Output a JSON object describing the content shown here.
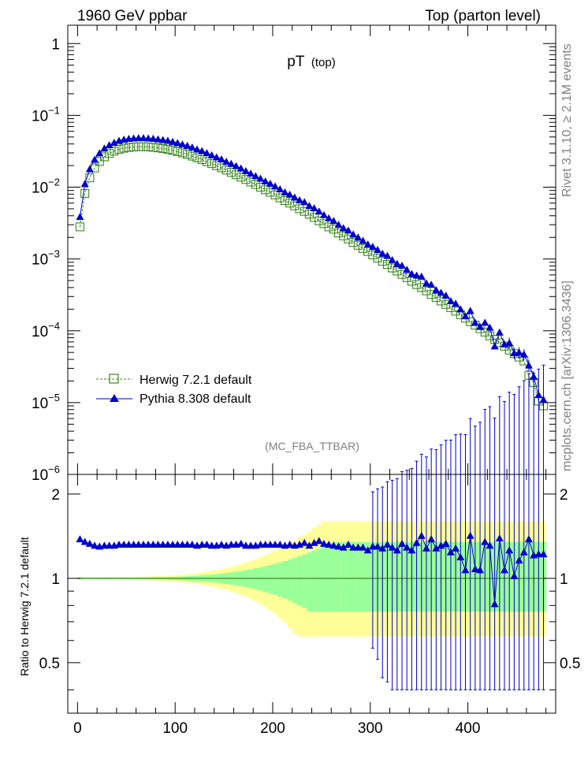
{
  "header": {
    "left": "1960 GeV ppbar",
    "right": "Top (parton level)"
  },
  "side_labels": {
    "rivet": "Rivet 3.1.10, ≥ 2.1M events",
    "mcplots": "mcplots.cern.ch [arXiv:1306.3436]"
  },
  "chart_data": [
    {
      "type": "scatter",
      "title": "pT (top)",
      "title_main": "pT",
      "title_sub": "(top)",
      "analysis_tag": "(MC_FBA_TTBAR)",
      "xlim": [
        -10,
        490
      ],
      "ylim": [
        1e-06,
        1.8
      ],
      "yscale": "log",
      "y_ticklabels": [
        {
          "v": 1,
          "base": "1",
          "exp": ""
        },
        {
          "v": 0.1,
          "base": "10",
          "exp": "−1"
        },
        {
          "v": 0.01,
          "base": "10",
          "exp": "−2"
        },
        {
          "v": 0.001,
          "base": "10",
          "exp": "−3"
        },
        {
          "v": 0.0001,
          "base": "10",
          "exp": "−4"
        },
        {
          "v": 1e-05,
          "base": "10",
          "exp": "−5"
        },
        {
          "v": 1e-06,
          "base": "10",
          "exp": "−6"
        }
      ],
      "legend_position": "bottom-left",
      "series": [
        {
          "name": "Herwig 7.2.1 default",
          "marker": "open-square",
          "color": "#3a8a1e",
          "line": "dashed",
          "x": [
            2.5,
            7.5,
            12.5,
            17.5,
            22.5,
            27.5,
            32.5,
            37.5,
            42.5,
            47.5,
            52.5,
            57.5,
            62.5,
            67.5,
            72.5,
            77.5,
            82.5,
            87.5,
            92.5,
            97.5,
            102.5,
            107.5,
            112.5,
            117.5,
            122.5,
            127.5,
            132.5,
            137.5,
            142.5,
            147.5,
            152.5,
            157.5,
            162.5,
            167.5,
            172.5,
            177.5,
            182.5,
            187.5,
            192.5,
            197.5,
            202.5,
            207.5,
            212.5,
            217.5,
            222.5,
            227.5,
            232.5,
            237.5,
            242.5,
            247.5,
            252.5,
            257.5,
            262.5,
            267.5,
            272.5,
            277.5,
            282.5,
            287.5,
            292.5,
            297.5,
            302.5,
            307.5,
            312.5,
            317.5,
            322.5,
            327.5,
            332.5,
            337.5,
            342.5,
            347.5,
            352.5,
            357.5,
            362.5,
            367.5,
            372.5,
            377.5,
            382.5,
            387.5,
            392.5,
            397.5,
            402.5,
            407.5,
            412.5,
            417.5,
            422.5,
            427.5,
            432.5,
            437.5,
            442.5,
            447.5,
            452.5,
            457.5,
            462.5,
            467.5,
            472.5,
            477.5
          ],
          "y": [
            0.0028,
            0.0082,
            0.0135,
            0.0185,
            0.0228,
            0.0265,
            0.0295,
            0.0318,
            0.0336,
            0.0349,
            0.0358,
            0.0363,
            0.0366,
            0.0366,
            0.0364,
            0.0359,
            0.0353,
            0.0345,
            0.0336,
            0.0325,
            0.0313,
            0.03,
            0.0286,
            0.0271,
            0.0256,
            0.0242,
            0.0227,
            0.0213,
            0.0199,
            0.0186,
            0.0173,
            0.0161,
            0.0149,
            0.0138,
            0.0128,
            0.0118,
            0.0109,
            0.01,
            0.0092,
            0.0085,
            0.0078,
            0.0071,
            0.0065,
            0.006,
            0.0055,
            0.005,
            0.0046,
            0.0042,
            0.0038,
            0.0034,
            0.0031,
            0.0028,
            0.0026,
            0.0023,
            0.0021,
            0.0019,
            0.0017,
            0.00155,
            0.0014,
            0.00127,
            0.00114,
            0.00103,
            0.00093,
            0.00084,
            0.00075,
            0.00068,
            0.00061,
            0.00055,
            0.00049,
            0.00044,
            0.0004,
            0.00036,
            0.00032,
            0.00029,
            0.00026,
            0.000233,
            0.00021,
            0.000188,
            0.000168,
            0.00015,
            0.000134,
            0.00012,
            0.000107,
            9.6e-05,
            8.5e-05,
            7.6e-05,
            6.8e-05,
            6.1e-05,
            5.4e-05,
            4.8e-05,
            4.3e-05,
            3.8e-05,
            2.4e-05,
            1.9e-05,
            1.05e-05,
            9e-06
          ]
        },
        {
          "name": "Pythia 8.308 default",
          "marker": "filled-triangle",
          "color": "#0000cc",
          "line": "solid",
          "x": [
            2.5,
            7.5,
            12.5,
            17.5,
            22.5,
            27.5,
            32.5,
            37.5,
            42.5,
            47.5,
            52.5,
            57.5,
            62.5,
            67.5,
            72.5,
            77.5,
            82.5,
            87.5,
            92.5,
            97.5,
            102.5,
            107.5,
            112.5,
            117.5,
            122.5,
            127.5,
            132.5,
            137.5,
            142.5,
            147.5,
            152.5,
            157.5,
            162.5,
            167.5,
            172.5,
            177.5,
            182.5,
            187.5,
            192.5,
            197.5,
            202.5,
            207.5,
            212.5,
            217.5,
            222.5,
            227.5,
            232.5,
            237.5,
            242.5,
            247.5,
            252.5,
            257.5,
            262.5,
            267.5,
            272.5,
            277.5,
            282.5,
            287.5,
            292.5,
            297.5,
            302.5,
            307.5,
            312.5,
            317.5,
            322.5,
            327.5,
            332.5,
            337.5,
            342.5,
            347.5,
            352.5,
            357.5,
            362.5,
            367.5,
            372.5,
            377.5,
            382.5,
            387.5,
            392.5,
            397.5,
            402.5,
            407.5,
            412.5,
            417.5,
            422.5,
            427.5,
            432.5,
            437.5,
            442.5,
            447.5,
            452.5,
            457.5,
            462.5,
            467.5,
            472.5,
            477.5
          ],
          "y": [
            0.00386,
            0.0111,
            0.0179,
            0.0242,
            0.0297,
            0.0347,
            0.0386,
            0.0417,
            0.0444,
            0.0461,
            0.0473,
            0.0479,
            0.0483,
            0.0483,
            0.0479,
            0.0474,
            0.0466,
            0.0455,
            0.0444,
            0.0429,
            0.0413,
            0.0395,
            0.0378,
            0.0358,
            0.0336,
            0.032,
            0.0299,
            0.0279,
            0.0261,
            0.0245,
            0.0227,
            0.0212,
            0.0197,
            0.0183,
            0.0168,
            0.0155,
            0.0143,
            0.0132,
            0.0121,
            0.0112,
            0.0103,
            0.0094,
            0.0085,
            0.0079,
            0.0072,
            0.0066,
            0.0062,
            0.0055,
            0.0051,
            0.0046,
            0.0041,
            0.0037,
            0.0034,
            0.003,
            0.0027,
            0.0025,
            0.0022,
            0.002,
            0.0018,
            0.0016,
            0.00148,
            0.00134,
            0.00119,
            0.00111,
            0.00097,
            0.00086,
            0.00081,
            0.00071,
            0.00062,
            0.00059,
            0.00057,
            0.00046,
            0.00044,
            0.00037,
            0.00034,
            0.00031,
            0.00026,
            0.00024,
            0.0002,
            0.00016,
            0.00019,
            0.00013,
            0.000114,
            0.00013,
            0.000111,
            6.1e-05,
            9.5e-05,
            6.5e-05,
            6.8e-05,
            4.9e-05,
            5e-05,
            4.7e-05,
            3.3e-05,
            2.3e-05,
            1.28e-05,
            1.1e-05
          ]
        }
      ]
    },
    {
      "type": "scatter",
      "ylabel": "Ratio to Herwig 7.2.1 default",
      "xlim": [
        -10,
        490
      ],
      "ylim": [
        0.33,
        2.35
      ],
      "y_ticklabels": [
        "0.5",
        "1",
        "2"
      ],
      "x_ticklabels": [
        "0",
        "100",
        "200",
        "300",
        "400"
      ],
      "bands": [
        {
          "color": "#ffff99",
          "kind": "2-sigma MC stat"
        },
        {
          "color": "#99ff99",
          "kind": "1-sigma MC stat"
        }
      ],
      "reference_line": {
        "y": 1,
        "color": "#3a8a1e"
      },
      "series": [
        {
          "name": "Pythia 8.308 default",
          "color": "#0000cc",
          "marker": "filled-triangle",
          "x": [
            2.5,
            7.5,
            12.5,
            17.5,
            22.5,
            27.5,
            32.5,
            37.5,
            42.5,
            47.5,
            52.5,
            57.5,
            62.5,
            67.5,
            72.5,
            77.5,
            82.5,
            87.5,
            92.5,
            97.5,
            102.5,
            107.5,
            112.5,
            117.5,
            122.5,
            127.5,
            132.5,
            137.5,
            142.5,
            147.5,
            152.5,
            157.5,
            162.5,
            167.5,
            172.5,
            177.5,
            182.5,
            187.5,
            192.5,
            197.5,
            202.5,
            207.5,
            212.5,
            217.5,
            222.5,
            227.5,
            232.5,
            237.5,
            242.5,
            247.5,
            252.5,
            257.5,
            262.5,
            267.5,
            272.5,
            277.5,
            282.5,
            287.5,
            292.5,
            297.5,
            302.5,
            307.5,
            312.5,
            317.5,
            322.5,
            327.5,
            332.5,
            337.5,
            342.5,
            347.5,
            352.5,
            357.5,
            362.5,
            367.5,
            372.5,
            377.5,
            382.5,
            387.5,
            392.5,
            397.5,
            402.5,
            407.5,
            412.5,
            417.5,
            422.5,
            427.5,
            432.5,
            437.5,
            442.5,
            447.5,
            452.5,
            457.5,
            462.5,
            467.5,
            472.5,
            477.5
          ],
          "y": [
            1.38,
            1.35,
            1.33,
            1.31,
            1.3,
            1.31,
            1.31,
            1.31,
            1.32,
            1.32,
            1.32,
            1.32,
            1.32,
            1.32,
            1.32,
            1.32,
            1.32,
            1.32,
            1.32,
            1.32,
            1.32,
            1.32,
            1.32,
            1.32,
            1.31,
            1.32,
            1.32,
            1.31,
            1.31,
            1.32,
            1.31,
            1.32,
            1.32,
            1.33,
            1.31,
            1.31,
            1.31,
            1.32,
            1.32,
            1.32,
            1.32,
            1.32,
            1.31,
            1.32,
            1.31,
            1.32,
            1.34,
            1.31,
            1.34,
            1.36,
            1.33,
            1.32,
            1.31,
            1.3,
            1.29,
            1.32,
            1.29,
            1.29,
            1.29,
            1.26,
            1.3,
            1.3,
            1.28,
            1.32,
            1.29,
            1.26,
            1.33,
            1.29,
            1.26,
            1.34,
            1.42,
            1.28,
            1.38,
            1.28,
            1.31,
            1.33,
            1.24,
            1.28,
            1.19,
            1.07,
            1.42,
            1.08,
            1.07,
            1.35,
            1.31,
            0.81,
            1.39,
            1.07,
            1.26,
            1.02,
            1.16,
            1.24,
            1.38,
            1.21,
            1.22,
            1.22
          ]
        }
      ]
    }
  ]
}
